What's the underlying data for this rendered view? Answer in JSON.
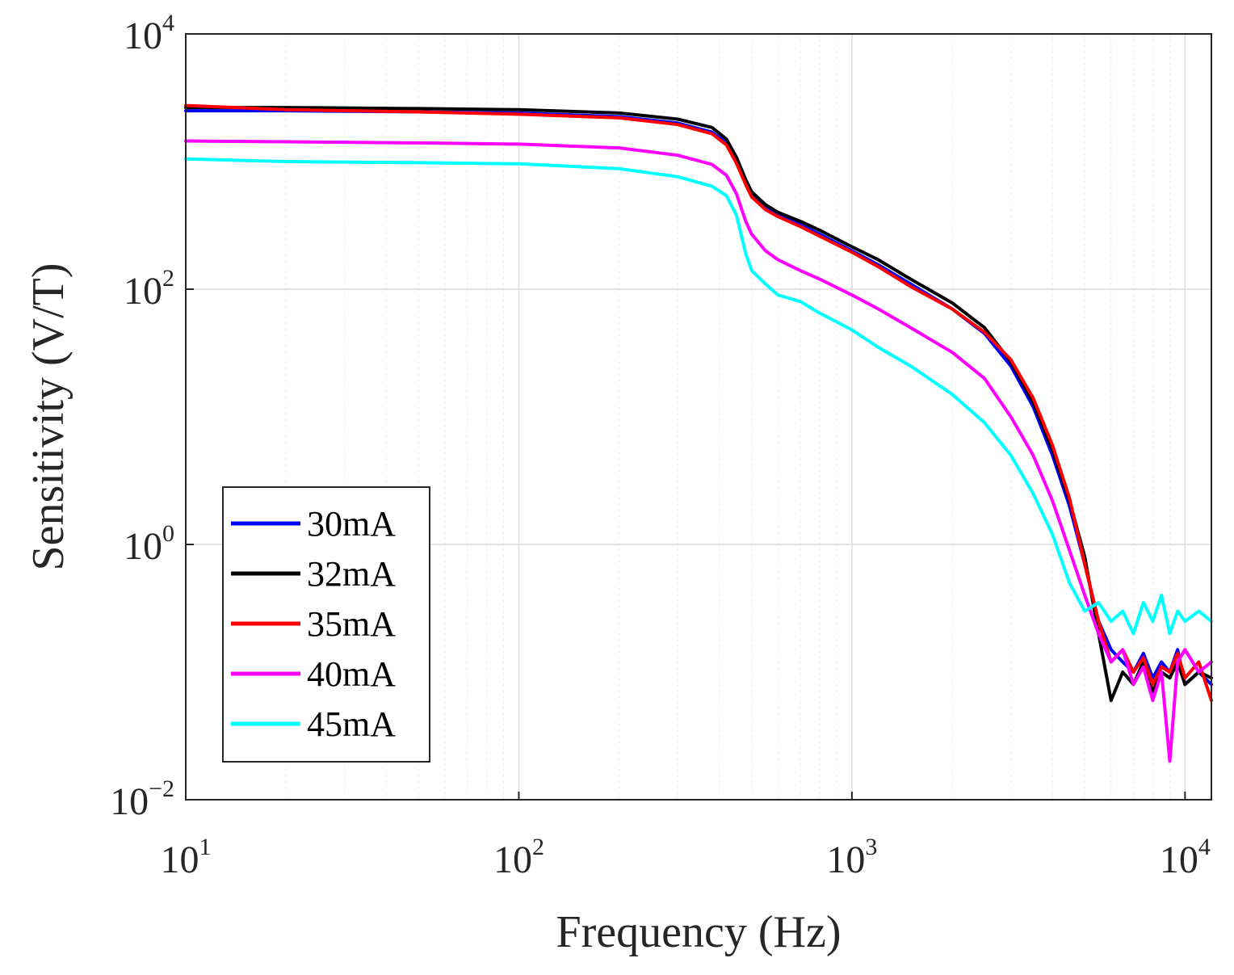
{
  "chart_data": {
    "type": "line",
    "title": "",
    "xlabel": "Frequency (Hz)",
    "ylabel": "Sensitivity (V/T)",
    "xscale": "log",
    "yscale": "log",
    "xlim": [
      10,
      12000
    ],
    "ylim": [
      0.01,
      10000
    ],
    "grid": true,
    "legend_position": "bottom-left",
    "x_ticks": [
      {
        "base": "10",
        "exp": "1",
        "value": 10
      },
      {
        "base": "10",
        "exp": "2",
        "value": 100
      },
      {
        "base": "10",
        "exp": "3",
        "value": 1000
      },
      {
        "base": "10",
        "exp": "4",
        "value": 10000
      }
    ],
    "y_ticks": [
      {
        "base": "10",
        "exp": "−2",
        "value": 0.01
      },
      {
        "base": "10",
        "exp": "0",
        "value": 1
      },
      {
        "base": "10",
        "exp": "2",
        "value": 100
      },
      {
        "base": "10",
        "exp": "4",
        "value": 10000
      }
    ],
    "x": [
      10,
      20,
      50,
      100,
      200,
      300,
      380,
      420,
      450,
      480,
      500,
      550,
      600,
      700,
      800,
      1000,
      1200,
      1500,
      2000,
      2500,
      3000,
      3500,
      4000,
      4500,
      5000,
      5500,
      6000,
      6500,
      7000,
      7500,
      8000,
      8500,
      9000,
      9500,
      10000,
      11000,
      12000
    ],
    "series": [
      {
        "name": "30mA",
        "color": "#0000ff",
        "values": [
          2500,
          2500,
          2450,
          2400,
          2250,
          2000,
          1700,
          1400,
          1000,
          680,
          550,
          430,
          380,
          320,
          270,
          200,
          155,
          110,
          70,
          45,
          25,
          12,
          5,
          2.0,
          0.7,
          0.25,
          0.15,
          0.12,
          0.1,
          0.14,
          0.09,
          0.12,
          0.1,
          0.15,
          0.08,
          0.1,
          0.08
        ]
      },
      {
        "name": "32mA",
        "color": "#000000",
        "values": [
          2650,
          2650,
          2600,
          2550,
          2400,
          2150,
          1850,
          1500,
          1080,
          720,
          580,
          460,
          400,
          340,
          290,
          215,
          170,
          120,
          78,
          50,
          27,
          13,
          5.5,
          2.2,
          0.8,
          0.2,
          0.06,
          0.1,
          0.08,
          0.12,
          0.07,
          0.1,
          0.09,
          0.12,
          0.08,
          0.1,
          0.09
        ]
      },
      {
        "name": "35mA",
        "color": "#ff0000",
        "values": [
          2750,
          2550,
          2450,
          2350,
          2200,
          1950,
          1650,
          1350,
          970,
          660,
          530,
          420,
          370,
          310,
          260,
          195,
          150,
          105,
          70,
          46,
          28,
          14,
          6,
          2.3,
          0.7,
          0.25,
          0.12,
          0.15,
          0.1,
          0.13,
          0.08,
          0.11,
          0.1,
          0.14,
          0.09,
          0.12,
          0.06
        ]
      },
      {
        "name": "40mA",
        "color": "#ff00ff",
        "values": [
          1450,
          1430,
          1400,
          1370,
          1280,
          1120,
          950,
          780,
          560,
          340,
          270,
          200,
          170,
          140,
          120,
          90,
          70,
          50,
          32,
          20,
          10,
          5,
          2.2,
          0.9,
          0.4,
          0.2,
          0.12,
          0.15,
          0.08,
          0.11,
          0.06,
          0.1,
          0.02,
          0.12,
          0.15,
          0.1,
          0.12
        ]
      },
      {
        "name": "45mA",
        "color": "#00ffff",
        "values": [
          1050,
          1000,
          980,
          960,
          880,
          760,
          640,
          540,
          380,
          190,
          140,
          110,
          90,
          80,
          65,
          48,
          35,
          25,
          15,
          9,
          5,
          2.5,
          1.2,
          0.5,
          0.3,
          0.35,
          0.25,
          0.3,
          0.2,
          0.35,
          0.25,
          0.4,
          0.2,
          0.3,
          0.25,
          0.3,
          0.25
        ]
      }
    ]
  }
}
